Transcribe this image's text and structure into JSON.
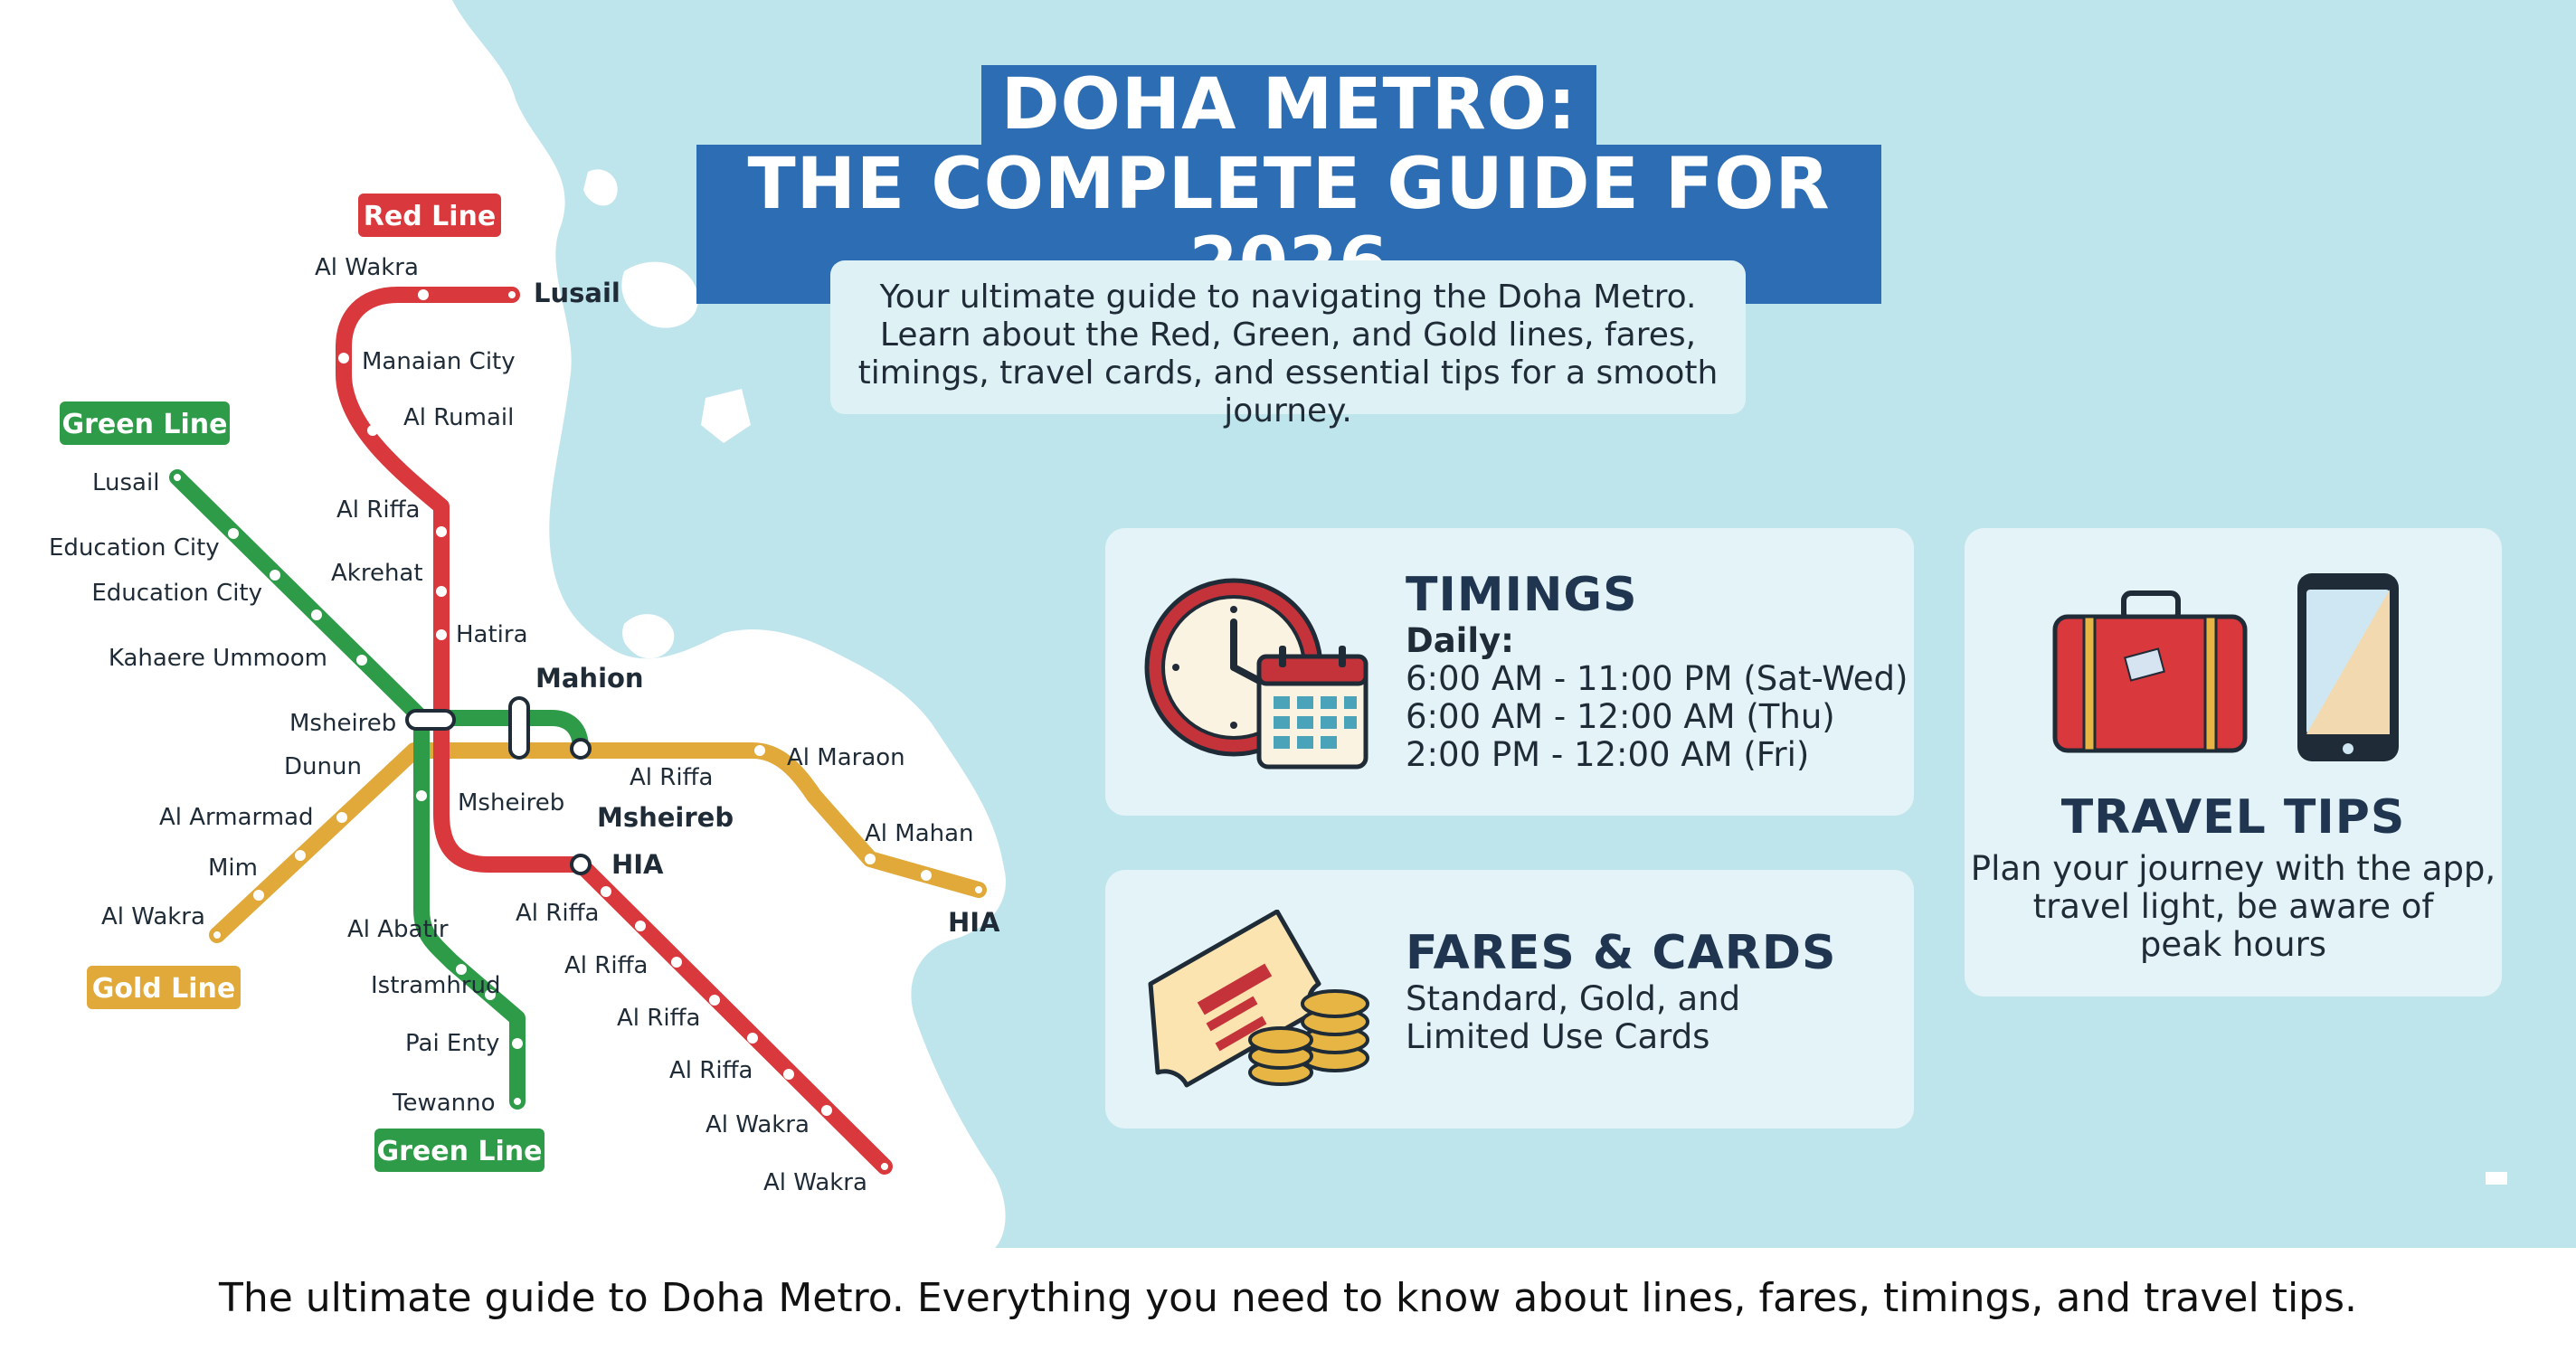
{
  "title": {
    "line1": "DOHA METRO:",
    "line2": "THE COMPLETE GUIDE FOR 2026"
  },
  "intro": "Your ultimate guide to navigating the Doha Metro. Learn about the Red, Green, and Gold lines, fares, timings, travel cards, and essential tips for a smooth journey.",
  "map": {
    "line_labels": [
      {
        "id": "red",
        "text": "Red Line",
        "color": "#d9383c"
      },
      {
        "id": "green-top",
        "text": "Green Line",
        "color": "#2e9b48"
      },
      {
        "id": "gold",
        "text": "Gold Line",
        "color": "#e0a93a"
      },
      {
        "id": "green-bottom",
        "text": "Green Line",
        "color": "#2e9b48"
      }
    ],
    "stations": [
      "Al Wakra",
      "Lusail",
      "Manaian City",
      "Al Rumail",
      "Lusail",
      "Education City",
      "Education City",
      "Kahaere Ummoom",
      "Al Riffa",
      "Akrehat",
      "Hatira",
      "Mahion",
      "Msheireb",
      "Dunun",
      "Al Armarmad",
      "Mim",
      "Al Wakra",
      "Al Riffa",
      "Al Maraon",
      "Msheireb",
      "Msheireb",
      "HIA",
      "Al Mahan",
      "HIA",
      "Al Abatir",
      "Al Riffa",
      "Istramhrud",
      "Al Riffa",
      "Pai Enty",
      "Al Riffa",
      "Al Riffa",
      "Tewanno",
      "Al Wakra",
      "Al Wakra"
    ]
  },
  "timings": {
    "title": "TIMINGS",
    "daily": "Daily:",
    "rows": [
      "6:00 AM - 11:00 PM (Sat-Wed)",
      "6:00 AM - 12:00 AM (Thu)",
      "2:00 PM - 12:00 AM (Fri)"
    ]
  },
  "fares": {
    "title": "FARES & CARDS",
    "lines": [
      "Standard, Gold, and",
      "Limited Use Cards"
    ]
  },
  "tips": {
    "title": "TRAVEL TIPS",
    "lines": [
      "Plan your journey with the app,",
      "travel light, be aware of",
      "peak hours"
    ]
  },
  "footer": "The ultimate guide to Doha Metro. Everything you need to know about lines, fares, timings, and travel tips.",
  "colors": {
    "sea": "#bfe5ec",
    "accent_blue": "#2d6db3",
    "card_bg": "#e4f3f7",
    "red_line": "#d9383c",
    "green_line": "#2e9b48",
    "gold_line": "#e0a93a"
  },
  "icons": [
    "clock-icon",
    "calendar-icon",
    "ticket-icon",
    "coins-icon",
    "suitcase-icon",
    "smartphone-icon"
  ]
}
